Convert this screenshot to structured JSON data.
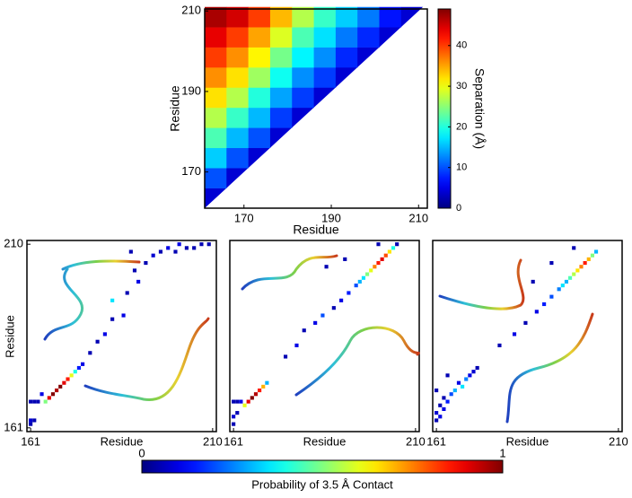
{
  "chart_data": [
    {
      "type": "heatmap",
      "xlabel": "Residue",
      "ylabel": "Residue",
      "colormap": "jet",
      "xlim": [
        161,
        212
      ],
      "ylim": [
        161,
        210.5
      ],
      "xticks": [
        170,
        190,
        210
      ],
      "yticks": [
        170,
        190,
        210
      ],
      "x_bins": [
        161,
        166,
        171,
        176,
        181,
        186,
        191,
        196,
        201,
        206,
        211
      ],
      "y_bins": [
        161,
        166,
        171,
        176,
        181,
        186,
        191,
        196,
        201,
        206,
        211
      ],
      "values": [
        [
          4,
          null,
          null,
          null,
          null,
          null,
          null,
          null,
          null,
          null
        ],
        [
          10,
          4,
          null,
          null,
          null,
          null,
          null,
          null,
          null,
          null
        ],
        [
          16,
          10,
          4,
          null,
          null,
          null,
          null,
          null,
          null,
          null
        ],
        [
          22,
          15,
          10,
          4,
          null,
          null,
          null,
          null,
          null,
          null
        ],
        [
          27,
          21,
          15,
          9,
          4,
          null,
          null,
          null,
          null,
          null
        ],
        [
          32,
          27,
          20,
          14,
          9,
          4,
          null,
          null,
          null,
          null
        ],
        [
          36,
          32,
          26,
          19,
          13,
          9,
          4,
          null,
          null,
          null
        ],
        [
          40,
          36,
          31,
          24,
          18,
          13,
          8,
          4,
          null,
          null
        ],
        [
          44,
          40,
          35,
          29,
          22,
          17,
          12,
          8,
          4,
          null
        ],
        [
          47,
          45,
          40,
          34,
          27,
          21,
          16,
          12,
          7,
          4
        ]
      ],
      "colorbar": {
        "label": "Separation (Å)",
        "lim": [
          0,
          49
        ],
        "ticks": [
          0,
          10,
          20,
          30,
          40
        ]
      }
    },
    {
      "type": "contact",
      "xlabel": "Residue",
      "ylabel": "Residue",
      "xlim": [
        160,
        211
      ],
      "ylim": [
        160,
        211
      ],
      "xticks": [
        161,
        210
      ],
      "yticks": [
        161,
        210
      ],
      "x": [
        165,
        166,
        167,
        168,
        169,
        170,
        171,
        172,
        173,
        174,
        175,
        161,
        161,
        162,
        161,
        162,
        163,
        164,
        177,
        179,
        181,
        183,
        186,
        183,
        187,
        190,
        192,
        194,
        196,
        198,
        200,
        201,
        203,
        188,
        189,
        205,
        207,
        209
      ],
      "y": [
        168,
        169,
        170,
        171,
        172,
        173,
        174,
        175,
        176,
        177,
        178,
        162,
        163,
        163,
        168,
        168,
        168,
        170,
        181,
        184,
        186,
        190,
        191,
        195,
        197,
        200,
        205,
        207,
        208,
        209,
        208,
        210,
        209,
        208,
        203,
        209,
        210,
        210
      ],
      "values": [
        0.5,
        0.9,
        1,
        0.95,
        1,
        0.9,
        0.85,
        0.6,
        0.4,
        0.15,
        0.1,
        0.05,
        0.08,
        0.05,
        0.05,
        0.05,
        0.05,
        0.1,
        0.05,
        0.05,
        0.1,
        0.05,
        0.1,
        0.35,
        0.05,
        0.1,
        0.05,
        0.08,
        0.05,
        0.1,
        0.05,
        0.1,
        0.05,
        0.05,
        0.05,
        0.05,
        0.05,
        0.05
      ]
    },
    {
      "type": "contact",
      "xlabel": "Residue",
      "xlim": [
        160,
        211
      ],
      "ylim": [
        160,
        211
      ],
      "xticks": [
        161,
        210
      ],
      "x": [
        164,
        165,
        166,
        167,
        168,
        169,
        170,
        161,
        161,
        162,
        161,
        162,
        163,
        175,
        178,
        180,
        183,
        185,
        188,
        190,
        192,
        194,
        195,
        196,
        197,
        198,
        199,
        200,
        201,
        202,
        203,
        204,
        186,
        191,
        200,
        205
      ],
      "y": [
        167,
        168,
        169,
        170,
        171,
        172,
        173,
        162,
        164,
        165,
        168,
        168,
        168,
        180,
        183,
        187,
        189,
        191,
        193,
        195,
        197,
        199,
        200,
        201,
        202,
        203,
        204,
        205,
        206,
        207,
        208,
        209,
        204,
        206,
        210,
        210
      ],
      "values": [
        0.6,
        0.9,
        1,
        0.95,
        0.85,
        0.7,
        0.3,
        0.05,
        0.08,
        0.05,
        0.05,
        0.05,
        0.1,
        0.05,
        0.1,
        0.05,
        0.1,
        0.2,
        0.05,
        0.1,
        0.15,
        0.2,
        0.3,
        0.35,
        0.5,
        0.6,
        0.75,
        0.85,
        0.9,
        0.8,
        0.65,
        0.4,
        0.05,
        0.05,
        0.05,
        0.05
      ]
    },
    {
      "type": "contact",
      "xlabel": "Residue",
      "xlim": [
        160,
        211
      ],
      "ylim": [
        160,
        211
      ],
      "xticks": [
        161,
        210
      ],
      "x": [
        161,
        161,
        162,
        162,
        163,
        163,
        164,
        165,
        166,
        167,
        168,
        169,
        170,
        171,
        172,
        161,
        164,
        178,
        182,
        185,
        188,
        190,
        192,
        194,
        195,
        196,
        197,
        198,
        199,
        200,
        201,
        202,
        203,
        204,
        187,
        192,
        198
      ],
      "y": [
        163,
        165,
        164,
        167,
        166,
        169,
        168,
        170,
        171,
        173,
        172,
        174,
        175,
        176,
        177,
        171,
        175,
        183,
        186,
        189,
        192,
        194,
        196,
        198,
        199,
        200,
        201,
        202,
        203,
        204,
        205,
        206,
        207,
        208,
        200,
        205,
        209
      ],
      "values": [
        0.05,
        0.08,
        0.1,
        0.05,
        0.1,
        0.05,
        0.15,
        0.2,
        0.3,
        0.1,
        0.35,
        0.25,
        0.1,
        0.08,
        0.05,
        0.05,
        0.05,
        0.05,
        0.1,
        0.05,
        0.1,
        0.15,
        0.2,
        0.25,
        0.35,
        0.3,
        0.45,
        0.55,
        0.65,
        0.75,
        0.85,
        0.7,
        0.5,
        0.3,
        0.05,
        0.05,
        0.05
      ]
    }
  ],
  "probability_colorbar": {
    "label": "Probability of 3.5 Å Contact",
    "lim": [
      0,
      1
    ],
    "ticks": [
      0,
      1
    ]
  }
}
